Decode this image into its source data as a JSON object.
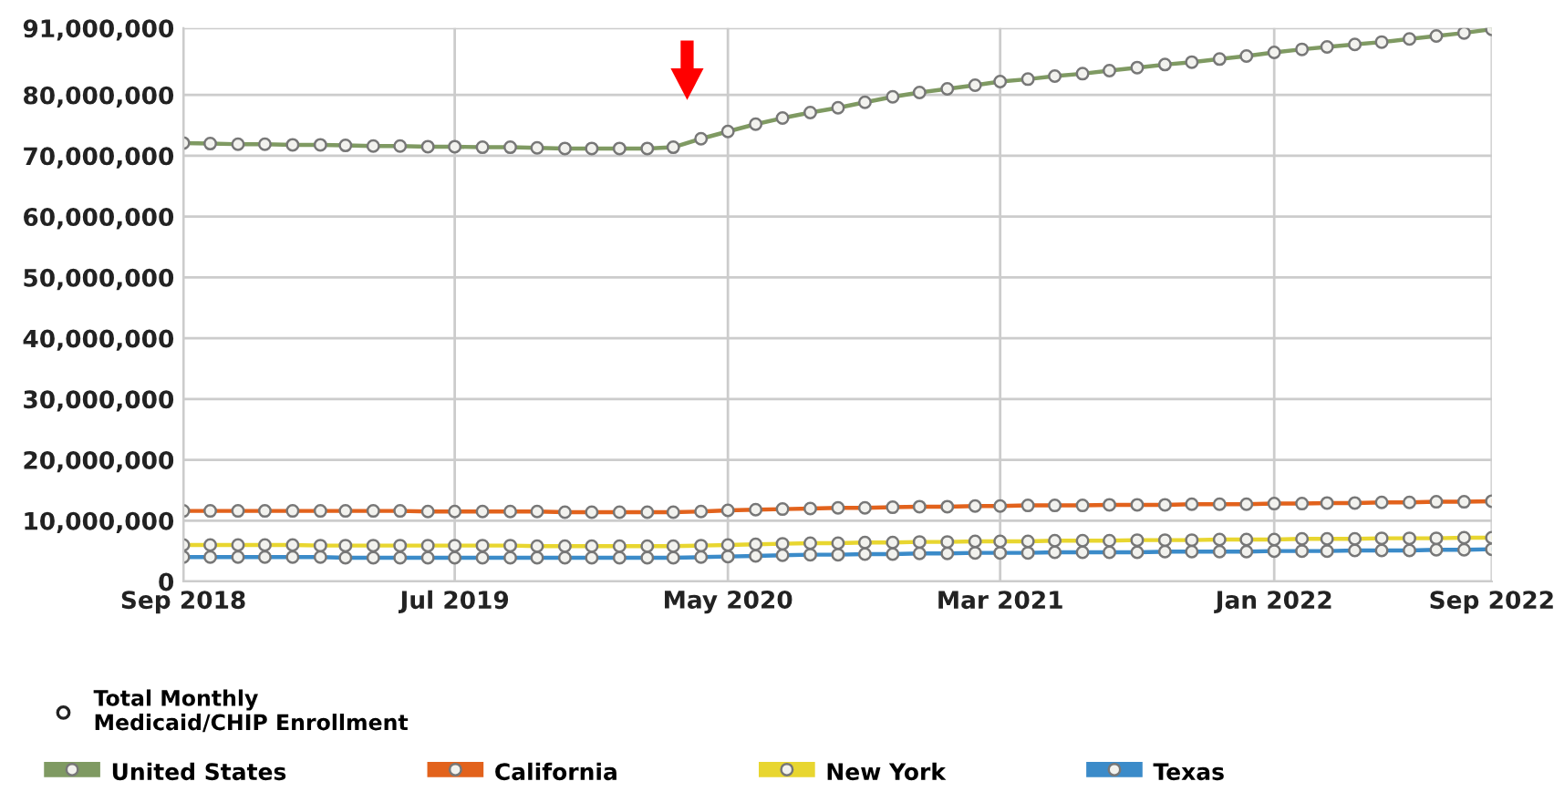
{
  "chart_data": {
    "type": "line",
    "x": [
      "2018-09",
      "2018-10",
      "2018-11",
      "2018-12",
      "2019-01",
      "2019-02",
      "2019-03",
      "2019-04",
      "2019-05",
      "2019-06",
      "2019-07",
      "2019-08",
      "2019-09",
      "2019-10",
      "2019-11",
      "2019-12",
      "2020-01",
      "2020-02",
      "2020-03",
      "2020-04",
      "2020-05",
      "2020-06",
      "2020-07",
      "2020-08",
      "2020-09",
      "2020-10",
      "2020-11",
      "2020-12",
      "2021-01",
      "2021-02",
      "2021-03",
      "2021-04",
      "2021-05",
      "2021-06",
      "2021-07",
      "2021-08",
      "2021-09",
      "2021-10",
      "2021-11",
      "2021-12",
      "2022-01",
      "2022-02",
      "2022-03",
      "2022-04",
      "2022-05",
      "2022-06",
      "2022-07",
      "2022-08",
      "2022-09"
    ],
    "series": [
      {
        "name": "United States",
        "color": "#7f9a62",
        "values": [
          72100000,
          72000000,
          71900000,
          71900000,
          71800000,
          71800000,
          71700000,
          71600000,
          71600000,
          71500000,
          71500000,
          71400000,
          71400000,
          71300000,
          71200000,
          71200000,
          71200000,
          71200000,
          71400000,
          72800000,
          74000000,
          75200000,
          76200000,
          77100000,
          77900000,
          78800000,
          79700000,
          80400000,
          81000000,
          81600000,
          82200000,
          82600000,
          83100000,
          83500000,
          84000000,
          84500000,
          85000000,
          85400000,
          85900000,
          86400000,
          87000000,
          87500000,
          87900000,
          88300000,
          88700000,
          89200000,
          89700000,
          90200000,
          90800000
        ]
      },
      {
        "name": "California",
        "color": "#e2621c",
        "values": [
          11600000,
          11600000,
          11600000,
          11600000,
          11600000,
          11600000,
          11600000,
          11600000,
          11600000,
          11500000,
          11500000,
          11500000,
          11500000,
          11500000,
          11400000,
          11400000,
          11400000,
          11400000,
          11400000,
          11500000,
          11700000,
          11800000,
          11900000,
          12000000,
          12100000,
          12100000,
          12200000,
          12300000,
          12300000,
          12400000,
          12400000,
          12500000,
          12500000,
          12500000,
          12600000,
          12600000,
          12600000,
          12700000,
          12700000,
          12700000,
          12800000,
          12800000,
          12900000,
          12900000,
          13000000,
          13000000,
          13100000,
          13100000,
          13200000
        ]
      },
      {
        "name": "New York",
        "color": "#e8d630",
        "values": [
          6000000,
          6000000,
          6000000,
          6000000,
          6000000,
          5900000,
          5900000,
          5900000,
          5900000,
          5900000,
          5900000,
          5900000,
          5900000,
          5800000,
          5800000,
          5800000,
          5800000,
          5800000,
          5800000,
          5900000,
          6000000,
          6100000,
          6200000,
          6300000,
          6300000,
          6400000,
          6400000,
          6500000,
          6500000,
          6600000,
          6600000,
          6600000,
          6700000,
          6700000,
          6700000,
          6800000,
          6800000,
          6800000,
          6900000,
          6900000,
          6900000,
          7000000,
          7000000,
          7000000,
          7100000,
          7100000,
          7100000,
          7200000,
          7200000
        ]
      },
      {
        "name": "Texas",
        "color": "#3b8bc9",
        "values": [
          4000000,
          4000000,
          4000000,
          4000000,
          4000000,
          4000000,
          3900000,
          3900000,
          3900000,
          3900000,
          3900000,
          3900000,
          3900000,
          3900000,
          3900000,
          3900000,
          3900000,
          3900000,
          3900000,
          4000000,
          4100000,
          4200000,
          4300000,
          4400000,
          4400000,
          4500000,
          4500000,
          4600000,
          4600000,
          4700000,
          4700000,
          4700000,
          4800000,
          4800000,
          4800000,
          4800000,
          4900000,
          4900000,
          4900000,
          4900000,
          5000000,
          5000000,
          5000000,
          5100000,
          5100000,
          5100000,
          5200000,
          5200000,
          5300000
        ]
      }
    ],
    "ylim": [
      0,
      91000000
    ],
    "yticks": [
      {
        "value": 0,
        "label": "0"
      },
      {
        "value": 10000000,
        "label": "10,000,000"
      },
      {
        "value": 20000000,
        "label": "20,000,000"
      },
      {
        "value": 30000000,
        "label": "30,000,000"
      },
      {
        "value": 40000000,
        "label": "40,000,000"
      },
      {
        "value": 50000000,
        "label": "50,000,000"
      },
      {
        "value": 60000000,
        "label": "60,000,000"
      },
      {
        "value": 70000000,
        "label": "70,000,000"
      },
      {
        "value": 80000000,
        "label": "80,000,000"
      },
      {
        "value": 91000000,
        "label": "91,000,000"
      }
    ],
    "xlim": [
      "2018-09",
      "2022-09"
    ],
    "xticks": [
      {
        "value": "2018-09",
        "label": "Sep 2018"
      },
      {
        "value": "2019-07",
        "label": "Jul 2019"
      },
      {
        "value": "2020-05",
        "label": "May 2020"
      },
      {
        "value": "2021-03",
        "label": "Mar 2021"
      },
      {
        "value": "2022-01",
        "label": "Jan 2022"
      },
      {
        "value": "2022-09",
        "label": "Sep 2022"
      }
    ],
    "legend_title": "Total Monthly\nMedicaid/CHIP Enrollment",
    "legend": "bottom",
    "grid": true,
    "marker": "circle",
    "line_style": "solid"
  }
}
